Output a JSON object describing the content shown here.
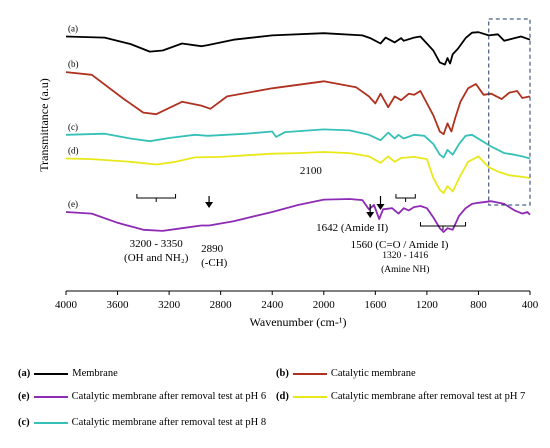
{
  "chart_data": {
    "type": "line",
    "xlabel": "Wavenumber (cm-¹)",
    "ylabel": "Transmittance (a.u)",
    "xlim": [
      4000,
      400
    ],
    "x_reversed": true,
    "x_ticks": [
      "4000",
      "3600",
      "3200",
      "2800",
      "2400",
      "2000",
      "1600",
      "1200",
      "800",
      "400"
    ],
    "grid": false,
    "legend_position": "bottom",
    "highlight_box_range": [
      720,
      400
    ],
    "series": [
      {
        "tag": "(a)",
        "name": "Membrane",
        "color": "#000000",
        "offset": 0,
        "points": [
          [
            4000,
            0.88
          ],
          [
            3700,
            0.86
          ],
          [
            3500,
            0.74
          ],
          [
            3350,
            0.6
          ],
          [
            3250,
            0.62
          ],
          [
            3100,
            0.75
          ],
          [
            2950,
            0.7
          ],
          [
            2900,
            0.72
          ],
          [
            2700,
            0.82
          ],
          [
            2400,
            0.9
          ],
          [
            2000,
            0.94
          ],
          [
            1700,
            0.9
          ],
          [
            1640,
            0.85
          ],
          [
            1560,
            0.75
          ],
          [
            1520,
            0.86
          ],
          [
            1450,
            0.77
          ],
          [
            1400,
            0.85
          ],
          [
            1380,
            0.8
          ],
          [
            1300,
            0.86
          ],
          [
            1250,
            0.88
          ],
          [
            1150,
            0.62
          ],
          [
            1100,
            0.4
          ],
          [
            1060,
            0.36
          ],
          [
            1040,
            0.48
          ],
          [
            1020,
            0.38
          ],
          [
            1000,
            0.55
          ],
          [
            960,
            0.65
          ],
          [
            900,
            0.85
          ],
          [
            850,
            0.95
          ],
          [
            800,
            0.96
          ],
          [
            720,
            0.9
          ],
          [
            650,
            0.92
          ],
          [
            600,
            0.8
          ],
          [
            520,
            0.85
          ],
          [
            470,
            0.88
          ],
          [
            400,
            0.82
          ]
        ]
      },
      {
        "tag": "(b)",
        "name": "Catalytic membrane",
        "color": "#b0311f",
        "offset": -0.78,
        "points": [
          [
            4000,
            1.0
          ],
          [
            3800,
            0.95
          ],
          [
            3550,
            0.5
          ],
          [
            3400,
            0.25
          ],
          [
            3300,
            0.22
          ],
          [
            3100,
            0.45
          ],
          [
            2950,
            0.38
          ],
          [
            2880,
            0.32
          ],
          [
            2750,
            0.55
          ],
          [
            2400,
            0.7
          ],
          [
            2000,
            0.83
          ],
          [
            1750,
            0.72
          ],
          [
            1650,
            0.55
          ],
          [
            1600,
            0.42
          ],
          [
            1560,
            0.6
          ],
          [
            1500,
            0.35
          ],
          [
            1450,
            0.55
          ],
          [
            1400,
            0.48
          ],
          [
            1340,
            0.6
          ],
          [
            1300,
            0.58
          ],
          [
            1250,
            0.65
          ],
          [
            1150,
            0.2
          ],
          [
            1100,
            -0.1
          ],
          [
            1070,
            -0.15
          ],
          [
            1040,
            0.05
          ],
          [
            1010,
            -0.1
          ],
          [
            980,
            0.15
          ],
          [
            940,
            0.45
          ],
          [
            880,
            0.7
          ],
          [
            820,
            0.78
          ],
          [
            760,
            0.58
          ],
          [
            700,
            0.6
          ],
          [
            620,
            0.5
          ],
          [
            560,
            0.62
          ],
          [
            500,
            0.65
          ],
          [
            460,
            0.52
          ],
          [
            400,
            0.55
          ]
        ]
      },
      {
        "tag": "(c)",
        "name": "Catalytic membrane after removal test at pH 8",
        "color": "#35c1b8",
        "offset": -1.56,
        "points": [
          [
            4000,
            0.62
          ],
          [
            3700,
            0.64
          ],
          [
            3500,
            0.55
          ],
          [
            3350,
            0.5
          ],
          [
            3200,
            0.56
          ],
          [
            3000,
            0.62
          ],
          [
            2900,
            0.6
          ],
          [
            2600,
            0.64
          ],
          [
            2400,
            0.68
          ],
          [
            2370,
            0.58
          ],
          [
            2300,
            0.67
          ],
          [
            2000,
            0.72
          ],
          [
            1800,
            0.7
          ],
          [
            1650,
            0.62
          ],
          [
            1560,
            0.52
          ],
          [
            1500,
            0.66
          ],
          [
            1450,
            0.55
          ],
          [
            1420,
            0.62
          ],
          [
            1380,
            0.55
          ],
          [
            1300,
            0.62
          ],
          [
            1220,
            0.6
          ],
          [
            1150,
            0.45
          ],
          [
            1100,
            0.25
          ],
          [
            1070,
            0.2
          ],
          [
            1040,
            0.34
          ],
          [
            1000,
            0.25
          ],
          [
            950,
            0.45
          ],
          [
            900,
            0.6
          ],
          [
            850,
            0.62
          ],
          [
            700,
            0.4
          ],
          [
            600,
            0.28
          ],
          [
            520,
            0.25
          ],
          [
            460,
            0.22
          ],
          [
            400,
            0.18
          ]
        ]
      },
      {
        "tag": "(d)",
        "name": "Catalytic membrane after removal test at pH 7",
        "color": "#e9e81a",
        "offset": -2.34,
        "points": [
          [
            4000,
            0.96
          ],
          [
            3800,
            0.95
          ],
          [
            3500,
            0.9
          ],
          [
            3300,
            0.85
          ],
          [
            3150,
            0.9
          ],
          [
            3000,
            0.98
          ],
          [
            2800,
            0.99
          ],
          [
            2600,
            1.02
          ],
          [
            2400,
            1.05
          ],
          [
            2200,
            1.06
          ],
          [
            2000,
            1.08
          ],
          [
            1800,
            1.06
          ],
          [
            1650,
            1.0
          ],
          [
            1560,
            0.88
          ],
          [
            1500,
            1.0
          ],
          [
            1450,
            0.9
          ],
          [
            1400,
            0.97
          ],
          [
            1300,
            0.99
          ],
          [
            1200,
            0.95
          ],
          [
            1150,
            0.6
          ],
          [
            1100,
            0.38
          ],
          [
            1070,
            0.32
          ],
          [
            1040,
            0.45
          ],
          [
            1000,
            0.35
          ],
          [
            950,
            0.6
          ],
          [
            880,
            0.9
          ],
          [
            800,
            1.0
          ],
          [
            720,
            0.8
          ],
          [
            650,
            0.72
          ],
          [
            560,
            0.65
          ],
          [
            460,
            0.62
          ],
          [
            400,
            0.6
          ]
        ]
      },
      {
        "tag": "(e)",
        "name": "Catalytic membrane after removal test at pH 6",
        "color": "#8e2bb4",
        "offset": -3.12,
        "points": [
          [
            4000,
            0.75
          ],
          [
            3800,
            0.72
          ],
          [
            3600,
            0.55
          ],
          [
            3400,
            0.42
          ],
          [
            3250,
            0.4
          ],
          [
            3100,
            0.45
          ],
          [
            2950,
            0.5
          ],
          [
            2890,
            0.5
          ],
          [
            2700,
            0.58
          ],
          [
            2400,
            0.75
          ],
          [
            2200,
            0.88
          ],
          [
            2000,
            0.98
          ],
          [
            1800,
            0.99
          ],
          [
            1700,
            0.97
          ],
          [
            1650,
            0.8
          ],
          [
            1610,
            0.88
          ],
          [
            1570,
            0.62
          ],
          [
            1540,
            0.8
          ],
          [
            1470,
            0.82
          ],
          [
            1420,
            0.72
          ],
          [
            1380,
            0.82
          ],
          [
            1340,
            0.78
          ],
          [
            1300,
            0.84
          ],
          [
            1250,
            0.86
          ],
          [
            1200,
            0.82
          ],
          [
            1150,
            0.65
          ],
          [
            1100,
            0.45
          ],
          [
            1070,
            0.38
          ],
          [
            1040,
            0.45
          ],
          [
            1000,
            0.42
          ],
          [
            950,
            0.68
          ],
          [
            900,
            0.82
          ],
          [
            850,
            0.9
          ],
          [
            800,
            0.92
          ],
          [
            700,
            0.95
          ],
          [
            600,
            0.9
          ],
          [
            520,
            0.78
          ],
          [
            460,
            0.72
          ],
          [
            420,
            0.75
          ],
          [
            400,
            0.7
          ]
        ]
      }
    ],
    "annotations": [
      {
        "id": "ann-3200",
        "wn": 3300,
        "lines": [
          "3200 - 3350",
          "(OH and NH₂)"
        ],
        "bracket": [
          3450,
          3150
        ]
      },
      {
        "id": "ann-2890",
        "wn": 2890,
        "lines": [
          "2890",
          "(-CH)"
        ],
        "arrow": true
      },
      {
        "id": "ann-2100",
        "wn": 2100,
        "lines": [
          "2100"
        ]
      },
      {
        "id": "ann-1642",
        "wn": 1640,
        "lines": [
          "1642 (Amide II)"
        ],
        "arrow": true
      },
      {
        "id": "ann-1560",
        "wn": 1560,
        "lines": [
          "1560 (C=O / Amide I)"
        ],
        "arrow": true
      },
      {
        "id": "ann-1320",
        "wn": 1368,
        "lines": [
          "1320 - 1416",
          "(Amine NH)"
        ],
        "bracket": [
          1440,
          1290
        ]
      },
      {
        "id": "ann-1100",
        "wn": 1080,
        "lines": [],
        "bracket": [
          1250,
          900
        ]
      }
    ]
  },
  "legend": [
    {
      "tag": "(a)",
      "label": "Membrane",
      "color": "#000000"
    },
    {
      "tag": "(b)",
      "label": "Catalytic membrane",
      "color": "#b0311f"
    },
    {
      "tag": "(e)",
      "label": "Catalytic membrane after removal test at pH 6",
      "color": "#8e2bb4"
    },
    {
      "tag": "(d)",
      "label": "Catalytic membrane after removal test at pH 7",
      "color": "#e9e81a"
    },
    {
      "tag": "(c)",
      "label": "Catalytic membrane after removal test at pH 8",
      "color": "#35c1b8"
    }
  ]
}
